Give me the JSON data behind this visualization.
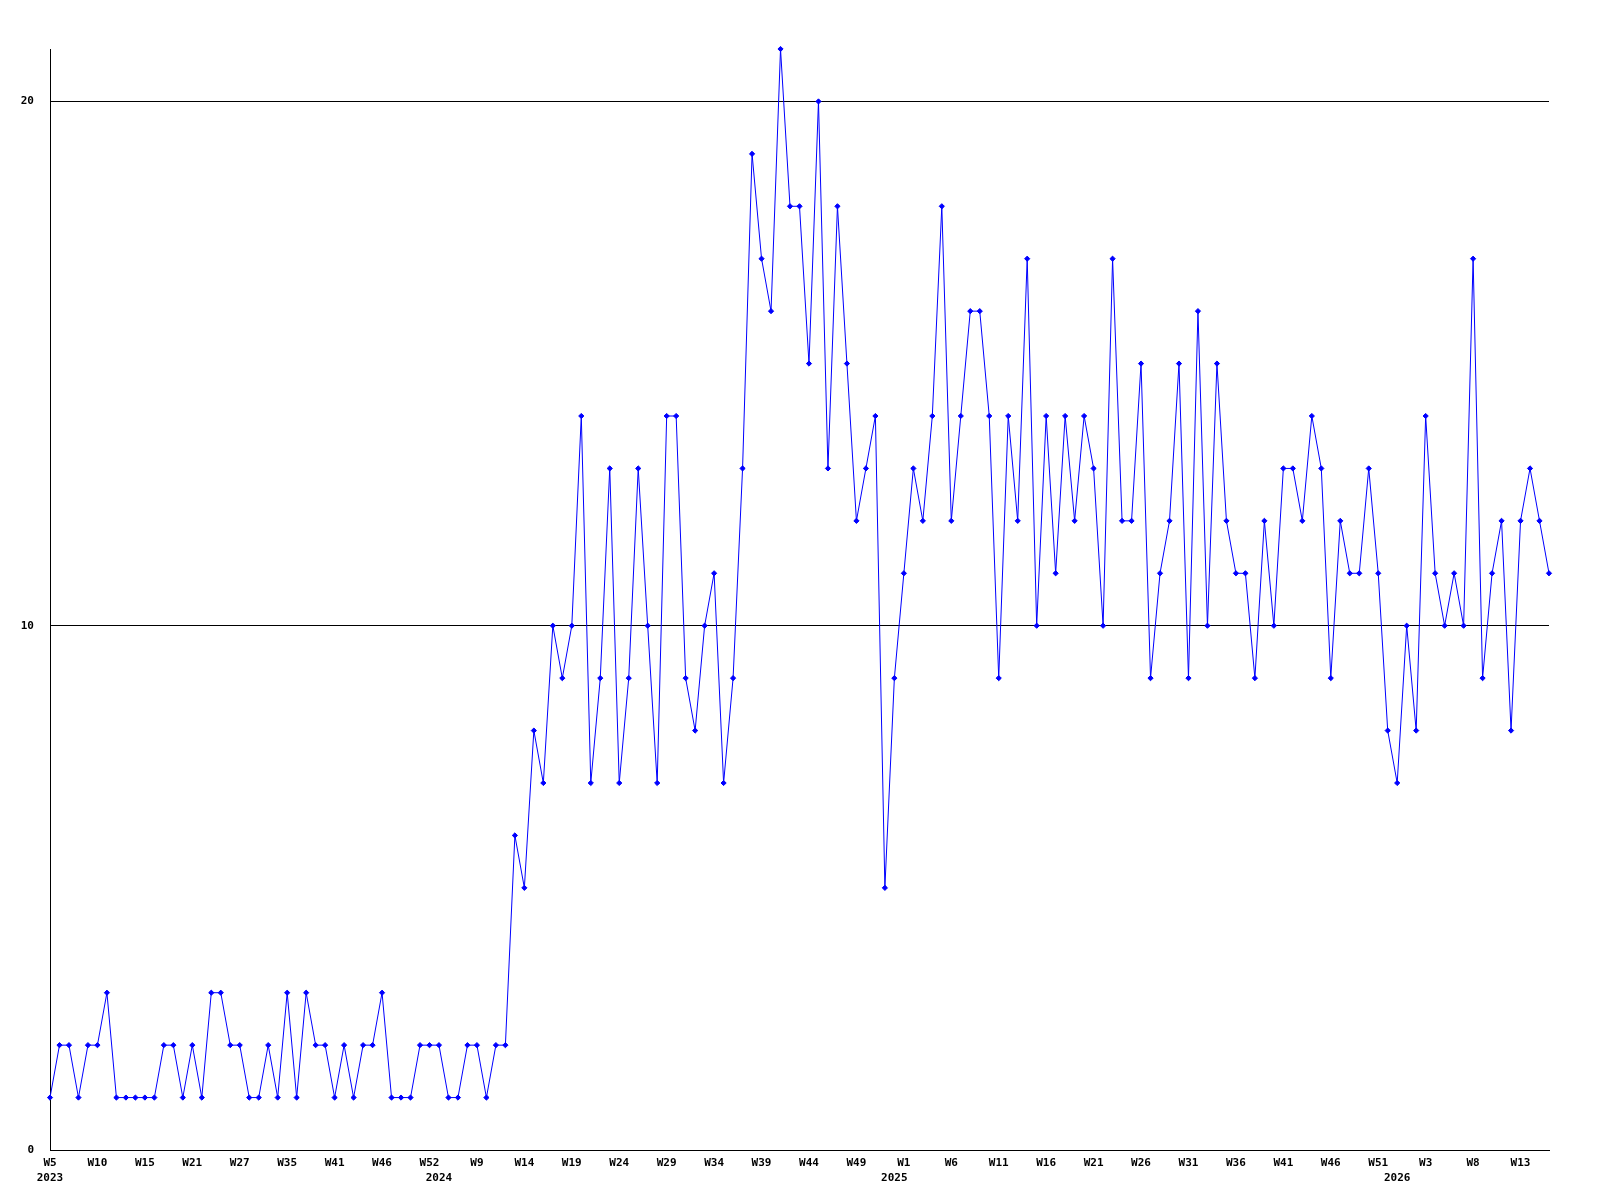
{
  "chart_data": {
    "type": "line",
    "categories": [
      "W5\n2023",
      null,
      null,
      null,
      null,
      "W10",
      null,
      null,
      null,
      null,
      "W15",
      null,
      null,
      null,
      null,
      "W21",
      null,
      null,
      null,
      null,
      "W27",
      null,
      null,
      null,
      null,
      "W35",
      null,
      null,
      null,
      null,
      "W41",
      null,
      null,
      null,
      null,
      "W46",
      null,
      null,
      null,
      null,
      "W52",
      "\n2024",
      null,
      null,
      null,
      "W9",
      null,
      null,
      null,
      null,
      "W14",
      null,
      null,
      null,
      null,
      "W19",
      null,
      null,
      null,
      null,
      "W24",
      null,
      null,
      null,
      null,
      "W29",
      null,
      null,
      null,
      null,
      "W34",
      null,
      null,
      null,
      null,
      "W39",
      null,
      null,
      null,
      null,
      "W44",
      null,
      null,
      null,
      null,
      "W49",
      null,
      null,
      null,
      "\n2025",
      "W1",
      null,
      null,
      null,
      null,
      "W6",
      null,
      null,
      null,
      null,
      "W11",
      null,
      null,
      null,
      null,
      "W16",
      null,
      null,
      null,
      null,
      "W21",
      null,
      null,
      null,
      null,
      "W26",
      null,
      null,
      null,
      null,
      "W31",
      null,
      null,
      null,
      null,
      "W36",
      null,
      null,
      null,
      null,
      "W41",
      null,
      null,
      null,
      null,
      "W46",
      null,
      null,
      null,
      null,
      "W51",
      null,
      "\n2026",
      null,
      null,
      "W3",
      null,
      null,
      null,
      null,
      "W8",
      null,
      null,
      null,
      null,
      "W13",
      null,
      null,
      null
    ],
    "values": [
      1,
      2,
      2,
      1,
      2,
      2,
      3,
      1,
      1,
      1,
      1,
      1,
      2,
      2,
      1,
      2,
      1,
      3,
      3,
      2,
      2,
      1,
      1,
      2,
      1,
      3,
      1,
      3,
      2,
      2,
      1,
      2,
      1,
      2,
      2,
      3,
      1,
      1,
      1,
      2,
      2,
      2,
      1,
      1,
      2,
      2,
      1,
      2,
      2,
      6,
      5,
      8,
      7,
      10,
      9,
      10,
      14,
      7,
      9,
      13,
      7,
      9,
      13,
      10,
      7,
      14,
      14,
      9,
      8,
      10,
      11,
      7,
      9,
      13,
      19,
      17,
      16,
      21,
      18,
      18,
      15,
      20,
      13,
      18,
      15,
      12,
      13,
      14,
      5,
      9,
      11,
      13,
      12,
      14,
      18,
      12,
      14,
      16,
      16,
      14,
      9,
      14,
      12,
      17,
      10,
      14,
      11,
      14,
      12,
      14,
      13,
      10,
      17,
      12,
      12,
      15,
      9,
      11,
      12,
      15,
      9,
      16,
      10,
      15,
      12,
      11,
      11,
      9,
      12,
      10,
      13,
      13,
      12,
      14,
      13,
      9,
      12,
      11,
      11,
      13,
      11,
      8,
      7,
      10,
      8,
      14,
      11,
      10,
      11,
      10,
      17,
      9,
      11,
      12,
      8,
      12,
      13,
      12,
      11
    ],
    "color": "#0000ff",
    "ylim": [
      0,
      21
    ],
    "yticks": [
      0,
      10,
      20
    ],
    "grid": "y",
    "marker": "diamond",
    "line_style": "solid"
  }
}
